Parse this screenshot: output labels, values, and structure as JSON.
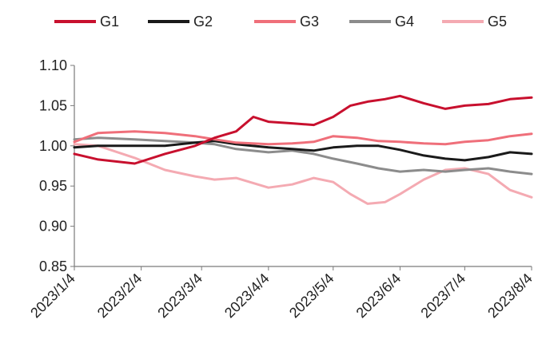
{
  "chart_data": {
    "type": "line",
    "title": "",
    "xlabel": "",
    "ylabel": "",
    "ylim": [
      0.85,
      1.1
    ],
    "yticks": [
      "0.85",
      "0.90",
      "0.95",
      "1.00",
      "1.05",
      "1.10"
    ],
    "xticks": [
      "2023/1/4",
      "2023/2/4",
      "2023/3/4",
      "2023/4/4",
      "2023/5/4",
      "2023/6/4",
      "2023/7/4",
      "2023/8/4"
    ],
    "grid": false,
    "legend_position": "top",
    "series": [
      {
        "name": "G1",
        "color": "#c8102e",
        "x": [
          "2023/1/4",
          "2023/1/15",
          "2023/2/1",
          "2023/2/15",
          "2023/3/1",
          "2023/3/10",
          "2023/3/20",
          "2023/3/28",
          "2023/4/4",
          "2023/4/15",
          "2023/4/25",
          "2023/5/4",
          "2023/5/12",
          "2023/5/20",
          "2023/5/28",
          "2023/6/4",
          "2023/6/15",
          "2023/6/25",
          "2023/7/4",
          "2023/7/15",
          "2023/7/25",
          "2023/8/4"
        ],
        "values": [
          0.99,
          0.983,
          0.978,
          0.99,
          1.0,
          1.01,
          1.018,
          1.036,
          1.03,
          1.028,
          1.026,
          1.036,
          1.05,
          1.055,
          1.058,
          1.062,
          1.053,
          1.046,
          1.05,
          1.052,
          1.058,
          1.06
        ]
      },
      {
        "name": "G2",
        "color": "#1a1a1a",
        "x": [
          "2023/1/4",
          "2023/1/15",
          "2023/2/1",
          "2023/2/15",
          "2023/3/1",
          "2023/3/10",
          "2023/3/20",
          "2023/4/4",
          "2023/4/15",
          "2023/4/25",
          "2023/5/4",
          "2023/5/15",
          "2023/5/25",
          "2023/6/4",
          "2023/6/15",
          "2023/6/25",
          "2023/7/4",
          "2023/7/15",
          "2023/7/25",
          "2023/8/4"
        ],
        "values": [
          0.998,
          1.0,
          1.0,
          1.0,
          1.004,
          1.006,
          1.002,
          0.998,
          0.996,
          0.994,
          0.998,
          1.0,
          1.0,
          0.995,
          0.988,
          0.984,
          0.982,
          0.986,
          0.992,
          0.99
        ]
      },
      {
        "name": "G3",
        "color": "#ef6f7a",
        "x": [
          "2023/1/4",
          "2023/1/15",
          "2023/2/1",
          "2023/2/15",
          "2023/3/1",
          "2023/3/10",
          "2023/3/20",
          "2023/4/4",
          "2023/4/15",
          "2023/4/25",
          "2023/5/4",
          "2023/5/15",
          "2023/5/25",
          "2023/6/4",
          "2023/6/15",
          "2023/6/25",
          "2023/7/4",
          "2023/7/15",
          "2023/7/25",
          "2023/8/4"
        ],
        "values": [
          1.005,
          1.016,
          1.018,
          1.016,
          1.012,
          1.008,
          1.004,
          1.002,
          1.003,
          1.005,
          1.012,
          1.01,
          1.006,
          1.005,
          1.003,
          1.002,
          1.005,
          1.007,
          1.012,
          1.015
        ]
      },
      {
        "name": "G4",
        "color": "#8c8c8c",
        "x": [
          "2023/1/4",
          "2023/1/15",
          "2023/2/1",
          "2023/2/15",
          "2023/3/1",
          "2023/3/10",
          "2023/3/20",
          "2023/4/4",
          "2023/4/15",
          "2023/4/25",
          "2023/5/4",
          "2023/5/15",
          "2023/5/25",
          "2023/6/4",
          "2023/6/15",
          "2023/6/25",
          "2023/7/4",
          "2023/7/15",
          "2023/7/25",
          "2023/8/4"
        ],
        "values": [
          1.008,
          1.01,
          1.008,
          1.006,
          1.004,
          1.002,
          0.996,
          0.992,
          0.994,
          0.99,
          0.984,
          0.978,
          0.972,
          0.968,
          0.97,
          0.968,
          0.97,
          0.972,
          0.968,
          0.965
        ]
      },
      {
        "name": "G5",
        "color": "#f4aab2",
        "x": [
          "2023/1/4",
          "2023/1/15",
          "2023/2/1",
          "2023/2/15",
          "2023/3/1",
          "2023/3/10",
          "2023/3/20",
          "2023/4/4",
          "2023/4/15",
          "2023/4/25",
          "2023/5/4",
          "2023/5/12",
          "2023/5/20",
          "2023/5/28",
          "2023/6/4",
          "2023/6/15",
          "2023/6/25",
          "2023/7/4",
          "2023/7/15",
          "2023/7/25",
          "2023/8/4"
        ],
        "values": [
          1.002,
          1.0,
          0.985,
          0.97,
          0.962,
          0.958,
          0.96,
          0.948,
          0.952,
          0.96,
          0.955,
          0.94,
          0.928,
          0.93,
          0.94,
          0.958,
          0.97,
          0.972,
          0.965,
          0.945,
          0.936
        ]
      }
    ]
  }
}
